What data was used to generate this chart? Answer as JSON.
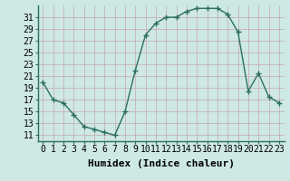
{
  "x": [
    0,
    1,
    2,
    3,
    4,
    5,
    6,
    7,
    8,
    9,
    10,
    11,
    12,
    13,
    14,
    15,
    16,
    17,
    18,
    19,
    20,
    21,
    22,
    23
  ],
  "y": [
    20,
    17,
    16.5,
    14.5,
    12.5,
    12,
    11.5,
    11,
    15,
    22,
    28,
    30,
    31,
    31,
    32,
    32.5,
    32.5,
    32.5,
    31.5,
    28.5,
    18.5,
    21.5,
    17.5,
    16.5
  ],
  "line_color": "#2d6e5e",
  "marker": "+",
  "bg_color": "#cde8e5",
  "grid_color_major": "#c0d8d5",
  "grid_color_minor": "#d8ecea",
  "xlabel": "Humidex (Indice chaleur)",
  "xlim": [
    -0.5,
    23.5
  ],
  "ylim": [
    10,
    33
  ],
  "yticks": [
    11,
    13,
    15,
    17,
    19,
    21,
    23,
    25,
    27,
    29,
    31
  ],
  "xlabel_fontsize": 8,
  "tick_fontsize": 7,
  "line_width": 1.0,
  "marker_size": 4,
  "marker_edge_width": 1.0
}
